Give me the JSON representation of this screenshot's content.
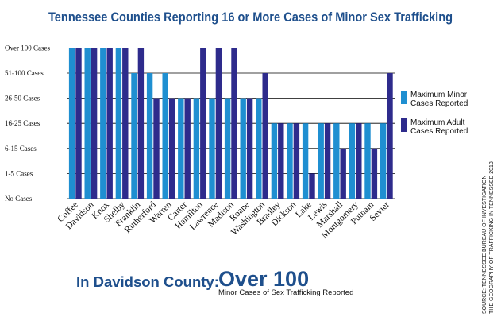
{
  "title": "Tennessee Counties Reporting 16 or More Cases of Minor Sex Trafficking",
  "colors": {
    "minor": "#1f8fd1",
    "adult": "#2e2b8c",
    "title": "#1e4f8c"
  },
  "legend": {
    "minor_label": "Maximum Minor Cases Reported",
    "adult_label": "Maximum Adult Cases Reported"
  },
  "footer": {
    "label": "In Davidson County:",
    "value": "Over 100",
    "sub": "Minor Cases of Sex Trafficking Reported"
  },
  "source": {
    "line1": "SOURCE: TENNESSEE BUREAU OF INVESTIGATION",
    "line2": "THE GEOGRAPHY OF TRAFFICKING IN TENNESSEE 2013"
  },
  "chart_data": {
    "type": "bar",
    "title": "Tennessee Counties Reporting 16 or More Cases of Minor Sex Trafficking",
    "categories": [
      "Coffee",
      "Davidson",
      "Knox",
      "Shelby",
      "Franklin",
      "Rutherford",
      "Warren",
      "Carter",
      "Hamilton",
      "Lawrence",
      "Madison",
      "Roane",
      "Washington",
      "Bradley",
      "Dickson",
      "Lake",
      "Lewis",
      "Marshall",
      "Montgomery",
      "Putnam",
      "Sevier"
    ],
    "y_levels": [
      "No Cases",
      "1-5 Cases",
      "6-15 Cases",
      "16-25 Cases",
      "26-50 Cases",
      "51-100 Cases",
      "Over 100 Cases"
    ],
    "grid": true,
    "legend_position": "right",
    "series": [
      {
        "name": "Maximum Minor Cases Reported",
        "values": [
          6,
          6,
          6,
          6,
          5,
          5,
          5,
          4,
          4,
          4,
          4,
          4,
          4,
          3,
          3,
          3,
          3,
          3,
          3,
          3,
          3
        ]
      },
      {
        "name": "Maximum Adult Cases Reported",
        "values": [
          6,
          6,
          6,
          6,
          6,
          4,
          4,
          4,
          6,
          6,
          6,
          4,
          5,
          3,
          3,
          1,
          3,
          2,
          3,
          2,
          5
        ]
      }
    ]
  }
}
